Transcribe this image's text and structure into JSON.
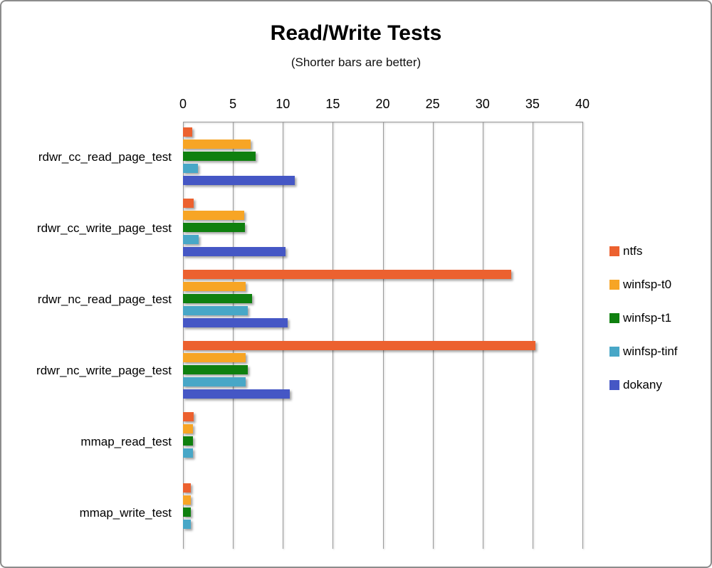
{
  "window": {
    "background": "#ffffff",
    "border_color": "#8c8c8c"
  },
  "chart_data": {
    "type": "bar",
    "orientation": "horizontal",
    "title": "Read/Write Tests",
    "subtitle": "(Shorter bars are better)",
    "note": "shorter bars are better",
    "categories": [
      "rdwr_cc_read_page_test",
      "rdwr_cc_write_page_test",
      "rdwr_nc_read_page_test",
      "rdwr_nc_write_page_test",
      "mmap_read_test",
      "mmap_write_test"
    ],
    "series": [
      {
        "name": "ntfs",
        "color": "#EC612F",
        "values": [
          0.9,
          1.1,
          32.9,
          35.3,
          1.1,
          0.8
        ]
      },
      {
        "name": "winfsp-t0",
        "color": "#F7A525",
        "values": [
          6.8,
          6.1,
          6.3,
          6.3,
          1.0,
          0.8
        ]
      },
      {
        "name": "winfsp-t1",
        "color": "#0F800F",
        "values": [
          7.3,
          6.2,
          6.9,
          6.5,
          1.0,
          0.8
        ]
      },
      {
        "name": "winfsp-tinf",
        "color": "#48A7C7",
        "values": [
          1.5,
          1.6,
          6.5,
          6.3,
          1.0,
          0.8
        ]
      },
      {
        "name": "dokany",
        "color": "#4557C5",
        "values": [
          11.2,
          10.3,
          10.5,
          10.7,
          0,
          0
        ]
      }
    ],
    "xaxis": {
      "min": 0,
      "max": 40,
      "step": 5,
      "ticks": [
        0,
        5,
        10,
        15,
        20,
        25,
        30,
        35,
        40
      ]
    },
    "grid": true,
    "legend_position": "right",
    "gridline_color": "#9a9a9a"
  }
}
